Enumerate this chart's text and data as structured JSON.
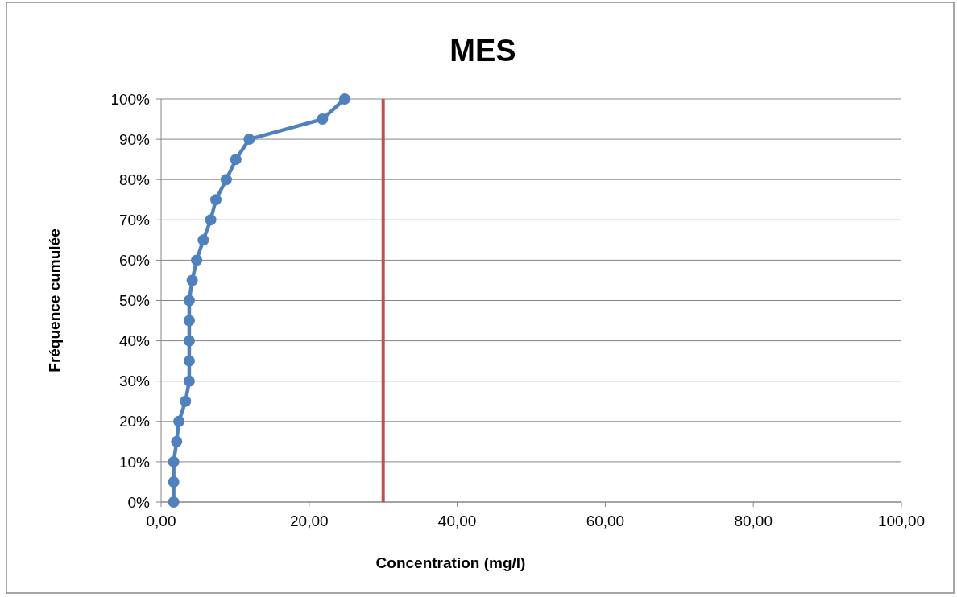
{
  "chart_data": {
    "type": "line",
    "title": "MES",
    "xlabel": "Concentration (mg/l)",
    "ylabel": "Fréquence cumulée",
    "series": [
      {
        "color": "#4f81bd",
        "x": [
          1.7,
          1.7,
          1.7,
          2.1,
          2.4,
          3.3,
          3.8,
          3.8,
          3.8,
          3.8,
          3.8,
          4.2,
          4.8,
          5.7,
          6.7,
          7.4,
          8.8,
          10.1,
          11.9,
          21.8,
          24.8
        ],
        "values": [
          0,
          5,
          10,
          15,
          20,
          25,
          30,
          35,
          40,
          45,
          50,
          55,
          60,
          65,
          70,
          75,
          80,
          85,
          90,
          95,
          100
        ]
      }
    ],
    "xlim": [
      0,
      100
    ],
    "xticks": [
      {
        "value": 0,
        "label": "0,00"
      },
      {
        "value": 20,
        "label": "20,00"
      },
      {
        "value": 40,
        "label": "40,00"
      },
      {
        "value": 60,
        "label": "60,00"
      },
      {
        "value": 80,
        "label": "80,00"
      },
      {
        "value": 100,
        "label": "100,00"
      }
    ],
    "ylim": [
      0,
      100
    ],
    "yticks": [
      {
        "value": 0,
        "label": "0%"
      },
      {
        "value": 10,
        "label": "10%"
      },
      {
        "value": 20,
        "label": "20%"
      },
      {
        "value": 30,
        "label": "30%"
      },
      {
        "value": 40,
        "label": "40%"
      },
      {
        "value": 50,
        "label": "50%"
      },
      {
        "value": 60,
        "label": "60%"
      },
      {
        "value": 70,
        "label": "70%"
      },
      {
        "value": 80,
        "label": "80%"
      },
      {
        "value": 90,
        "label": "90%"
      },
      {
        "value": 100,
        "label": "100%"
      }
    ],
    "ref_lines": [
      {
        "axis": "x",
        "value": 30,
        "color": "#c0504d"
      }
    ],
    "grid": "y",
    "marker": "circle",
    "line_style": "solid"
  }
}
